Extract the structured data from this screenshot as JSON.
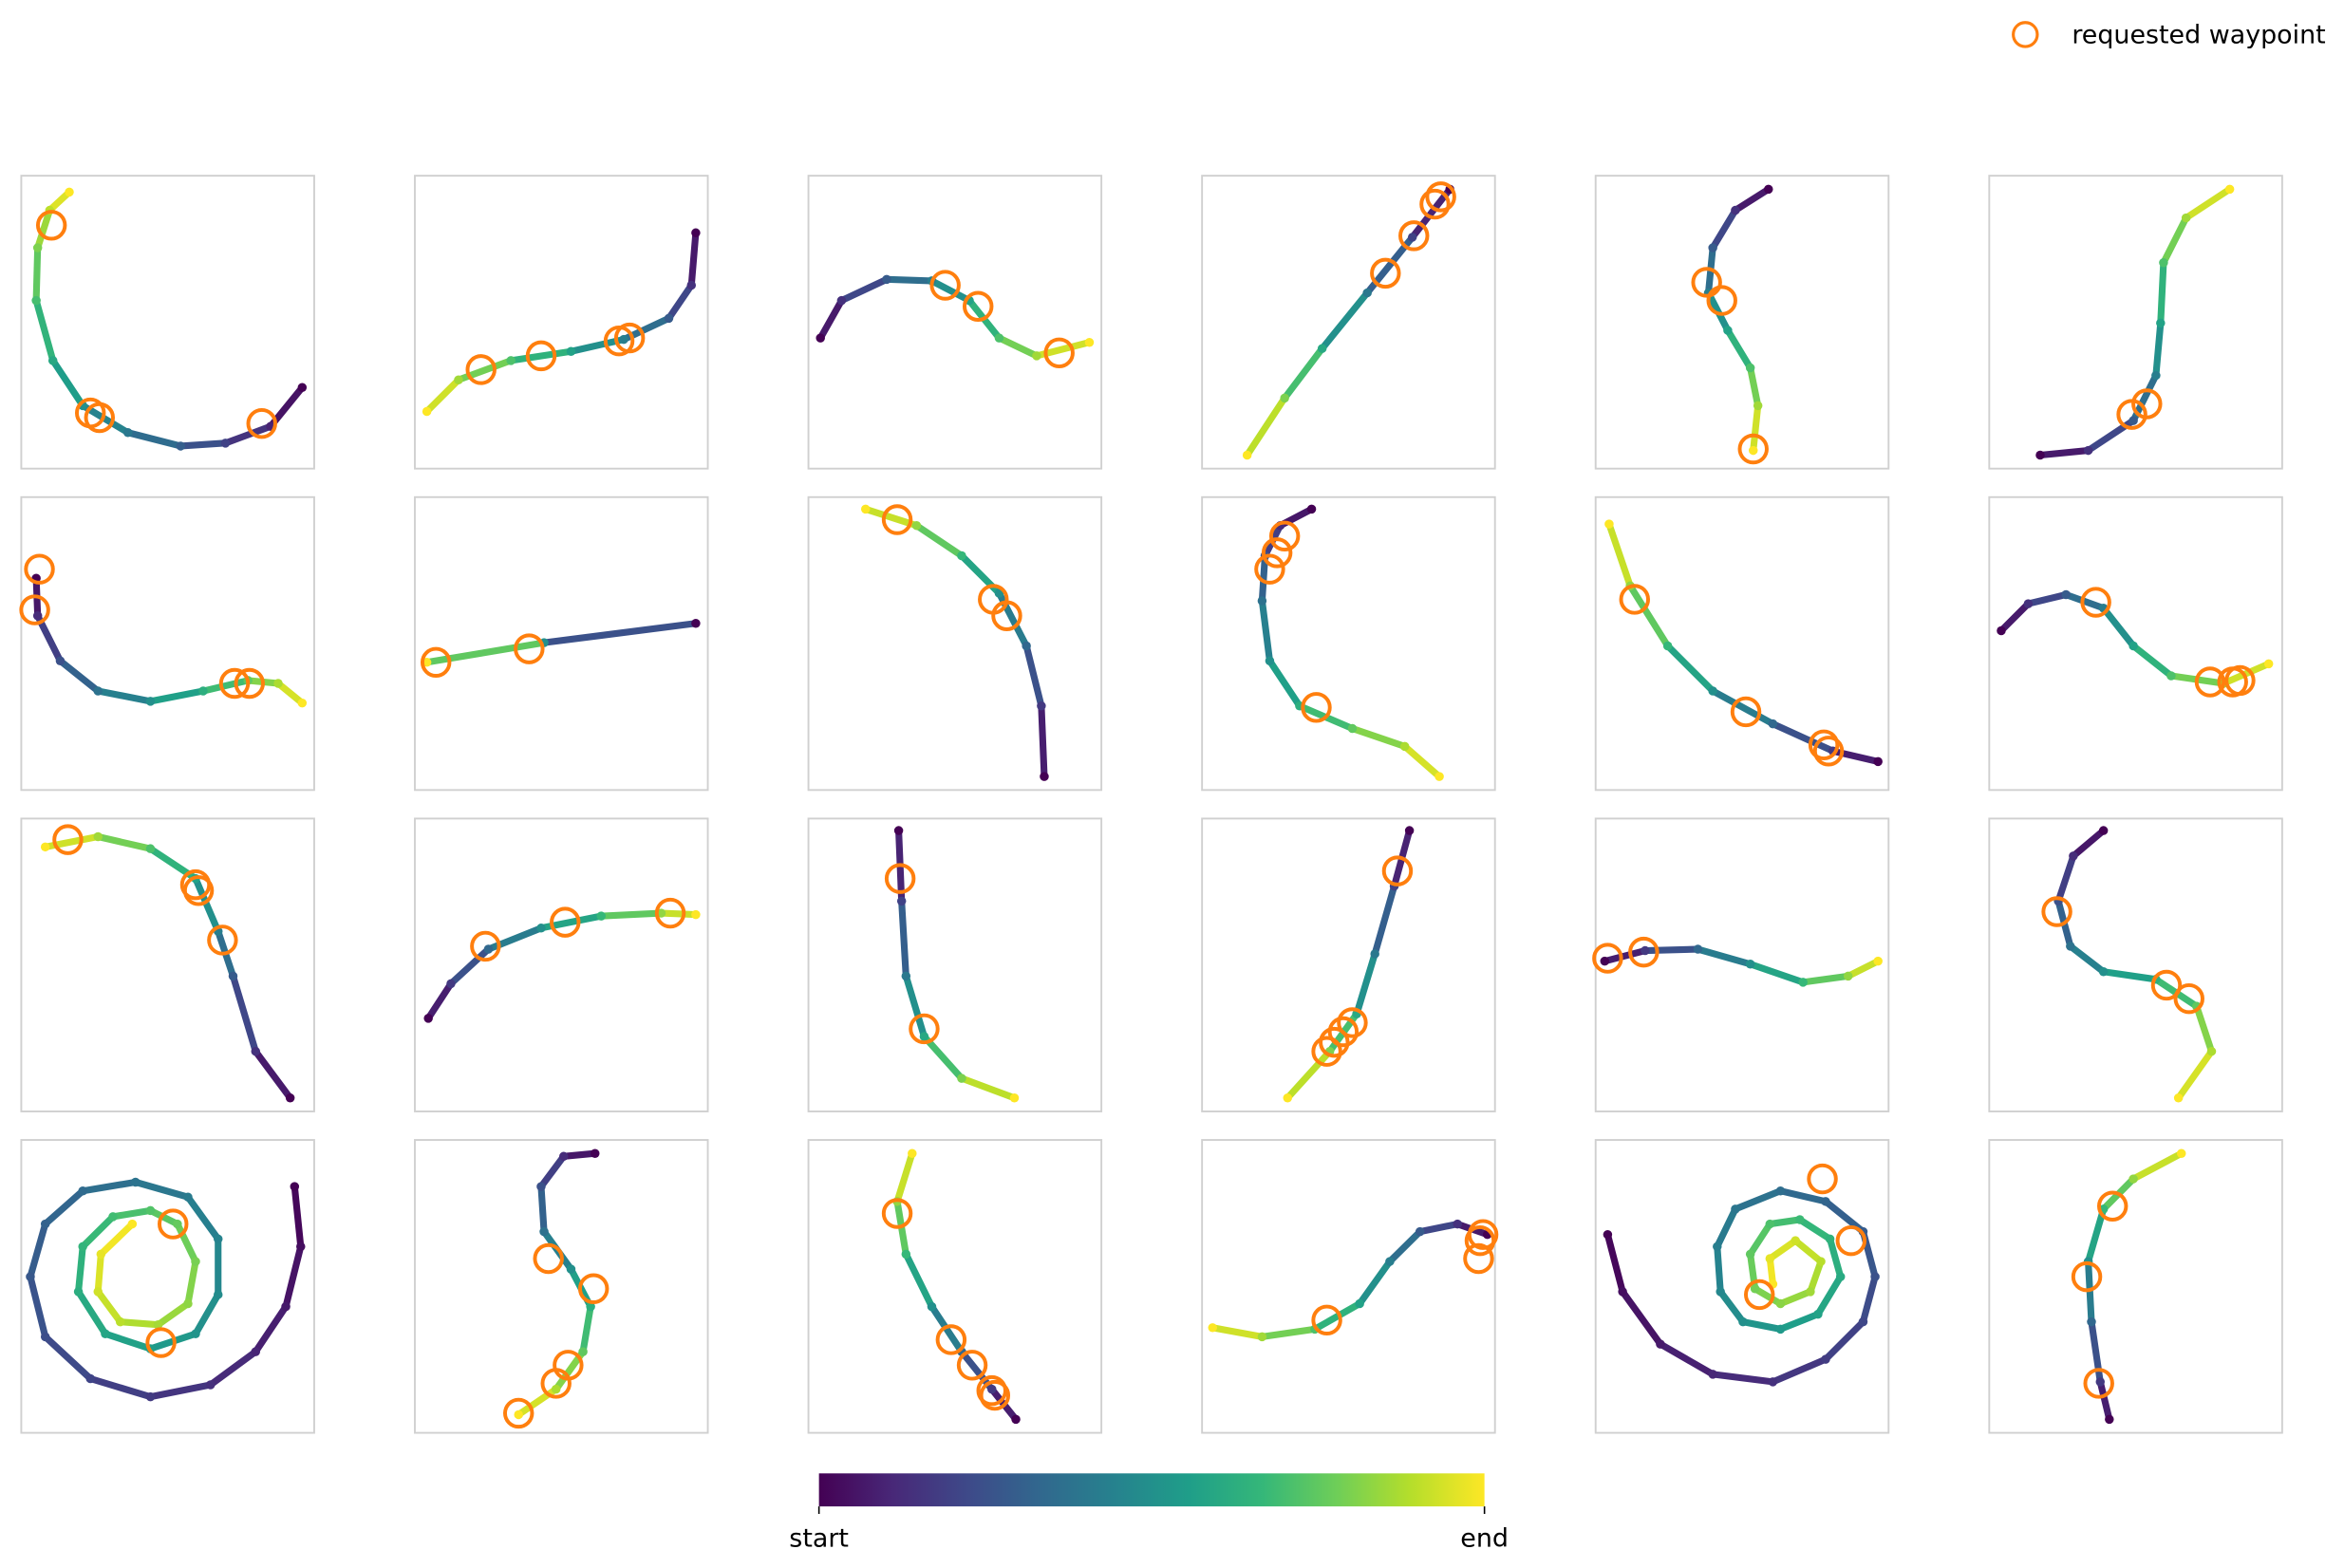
{
  "chart_data": {
    "type": "trajectory-grid",
    "xlim": [
      0,
      100
    ],
    "ylim": [
      0,
      100
    ],
    "colormap": "viridis",
    "legend": {
      "label": "requested waypoint",
      "color": "#ff7f0e",
      "position": "upper right"
    },
    "colorbar": {
      "start_label": "start",
      "end_label": "end"
    },
    "panels": [
      {
        "x": [
          95.9,
          85.1,
          69.7,
          54.4,
          36.4,
          21.0,
          10.8,
          5.1,
          5.6,
          9.7,
          16.4
        ],
        "y": [
          27.7,
          14.4,
          8.7,
          7.7,
          12.3,
          21.5,
          36.9,
          57.4,
          75.4,
          88.2,
          94.4
        ],
        "waypoints_x": [
          10.3,
          23.6,
          26.7,
          82.1
        ],
        "waypoints_y": [
          83.1,
          19.0,
          17.4,
          15.4
        ]
      },
      {
        "x": [
          95.9,
          94.4,
          86.7,
          71.3,
          53.3,
          32.8,
          14.9,
          4.1
        ],
        "y": [
          80.5,
          62.6,
          51.3,
          44.1,
          40.0,
          36.9,
          30.3,
          19.5
        ],
        "waypoints_x": [
          22.6,
          43.1,
          69.7,
          73.3
        ],
        "waypoints_y": [
          33.8,
          38.5,
          43.6,
          44.6
        ]
      },
      {
        "x": [
          4.1,
          11.3,
          26.7,
          42.1,
          54.9,
          65.1,
          77.9,
          95.9
        ],
        "y": [
          44.6,
          57.4,
          64.6,
          64.1,
          57.4,
          44.6,
          38.5,
          43.1
        ],
        "waypoints_x": [
          46.7,
          57.9,
          85.6
        ],
        "waypoints_y": [
          62.6,
          55.4,
          39.5
        ]
      },
      {
        "x": [
          84.6,
          71.8,
          56.4,
          41.0,
          28.2,
          15.4
        ],
        "y": [
          95.4,
          79.0,
          60.0,
          41.0,
          24.1,
          4.6
        ],
        "waypoints_x": [
          62.6,
          72.3,
          79.5,
          81.5
        ],
        "waypoints_y": [
          66.7,
          79.5,
          90.3,
          92.8
        ]
      },
      {
        "x": [
          59.0,
          47.7,
          40.0,
          38.5,
          45.1,
          52.8,
          55.4,
          53.8
        ],
        "y": [
          95.4,
          88.2,
          75.4,
          60.0,
          47.2,
          34.4,
          21.5,
          6.2
        ],
        "waypoints_x": [
          37.9,
          43.1,
          53.8
        ],
        "waypoints_y": [
          63.6,
          57.4,
          6.7
        ]
      },
      {
        "x": [
          17.4,
          33.8,
          49.2,
          56.9,
          58.5,
          59.5,
          67.2,
          82.1
        ],
        "y": [
          4.6,
          6.2,
          16.4,
          31.8,
          49.7,
          70.3,
          85.6,
          95.4
        ],
        "waypoints_x": [
          48.7,
          53.8
        ],
        "waypoints_y": [
          18.5,
          22.1
        ]
      },
      {
        "x": [
          5.1,
          5.6,
          13.3,
          26.2,
          44.1,
          62.1,
          77.4,
          87.7,
          95.9
        ],
        "y": [
          72.3,
          59.5,
          44.1,
          33.8,
          30.3,
          33.8,
          37.4,
          36.4,
          29.7
        ],
        "waypoints_x": [
          6.2,
          4.6,
          72.8,
          77.9
        ],
        "waypoints_y": [
          75.4,
          61.5,
          36.4,
          36.4
        ]
      },
      {
        "x": [
          95.9,
          44.1,
          4.1
        ],
        "y": [
          56.9,
          50.3,
          43.6
        ],
        "waypoints_x": [
          7.2,
          39.0
        ],
        "waypoints_y": [
          43.6,
          48.2
        ]
      },
      {
        "x": [
          80.5,
          79.5,
          74.4,
          65.1,
          52.3,
          36.9,
          19.5
        ],
        "y": [
          4.6,
          28.7,
          49.2,
          67.2,
          80.0,
          90.3,
          95.9
        ],
        "waypoints_x": [
          30.3,
          63.1,
          67.7
        ],
        "waypoints_y": [
          92.3,
          65.1,
          59.5
        ]
      },
      {
        "x": [
          37.4,
          26.7,
          21.5,
          20.5,
          23.1,
          33.3,
          51.3,
          69.2,
          81.0
        ],
        "y": [
          95.9,
          90.3,
          80.0,
          64.6,
          44.1,
          28.7,
          21.0,
          14.9,
          4.6
        ],
        "waypoints_x": [
          28.2,
          25.6,
          23.1,
          39.0
        ],
        "waypoints_y": [
          86.7,
          81.0,
          75.4,
          28.2
        ]
      },
      {
        "x": [
          96.4,
          81.0,
          60.5,
          40.0,
          24.6,
          11.8,
          4.6
        ],
        "y": [
          9.7,
          13.3,
          22.6,
          33.8,
          49.2,
          69.7,
          90.8
        ],
        "waypoints_x": [
          13.3,
          51.3,
          77.9,
          79.5
        ],
        "waypoints_y": [
          65.1,
          26.7,
          15.4,
          13.3
        ]
      },
      {
        "x": [
          4.1,
          13.3,
          26.2,
          39.0,
          49.2,
          62.1,
          80.0,
          95.4
        ],
        "y": [
          54.4,
          63.6,
          66.7,
          62.1,
          49.2,
          39.0,
          36.4,
          43.1
        ],
        "waypoints_x": [
          36.4,
          75.4,
          83.1,
          85.6
        ],
        "waypoints_y": [
          64.1,
          36.9,
          36.9,
          37.4
        ]
      },
      {
        "x": [
          91.8,
          80.0,
          72.3,
          67.2,
          59.5,
          44.1,
          26.2,
          8.2
        ],
        "y": [
          4.6,
          20.5,
          46.2,
          61.5,
          79.5,
          89.7,
          93.8,
          90.3
        ],
        "waypoints_x": [
          15.9,
          59.5,
          60.5,
          68.7
        ],
        "waypoints_y": [
          92.8,
          77.4,
          75.4,
          58.5
        ]
      },
      {
        "x": [
          4.6,
          12.3,
          25.1,
          43.1,
          63.6,
          84.1,
          95.9
        ],
        "y": [
          31.8,
          43.6,
          55.4,
          62.6,
          66.7,
          67.7,
          67.2
        ],
        "waypoints_x": [
          24.1,
          51.3,
          87.2
        ],
        "waypoints_y": [
          56.4,
          64.6,
          67.7
        ]
      },
      {
        "x": [
          30.8,
          31.8,
          33.3,
          39.5,
          52.3,
          70.3
        ],
        "y": [
          95.9,
          71.8,
          46.2,
          25.6,
          11.3,
          4.6
        ],
        "waypoints_x": [
          31.3,
          39.5
        ],
        "waypoints_y": [
          79.5,
          28.2
        ]
      },
      {
        "x": [
          70.8,
          65.6,
          59.0,
          52.8,
          43.6,
          29.2
        ],
        "y": [
          95.9,
          76.9,
          53.8,
          33.3,
          20.5,
          4.6
        ],
        "waypoints_x": [
          66.7,
          51.3,
          48.2,
          45.1,
          42.6
        ],
        "waypoints_y": [
          82.1,
          30.3,
          27.2,
          23.6,
          20.5
        ]
      },
      {
        "x": [
          3.1,
          16.9,
          34.9,
          52.8,
          70.8,
          86.2,
          96.4
        ],
        "y": [
          51.3,
          54.9,
          55.4,
          50.3,
          44.1,
          46.2,
          51.3
        ],
        "waypoints_x": [
          4.1,
          16.4
        ],
        "waypoints_y": [
          52.3,
          54.4
        ]
      },
      {
        "x": [
          39.0,
          28.7,
          23.6,
          27.7,
          39.0,
          56.9,
          70.8,
          75.9,
          64.6
        ],
        "y": [
          95.9,
          87.2,
          71.8,
          56.4,
          47.7,
          45.1,
          35.9,
          20.5,
          4.6
        ],
        "waypoints_x": [
          23.1,
          60.5,
          68.2
        ],
        "waypoints_y": [
          68.2,
          43.1,
          38.5
        ]
      },
      {
        "x": [
          93.3,
          95.4,
          90.3,
          80.0,
          64.6,
          44.1,
          23.6,
          8.2,
          3.1,
          8.2,
          21.0,
          39.0,
          56.9,
          67.2,
          67.2,
          59.5,
          44.1,
          28.7,
          19.5,
          21.0,
          31.3,
          44.1,
          53.3,
          59.5,
          56.9,
          46.7,
          33.8,
          26.2,
          27.2,
          37.9
        ],
        "y": [
          84.1,
          63.6,
          43.1,
          27.7,
          16.4,
          12.3,
          18.5,
          32.8,
          53.3,
          71.3,
          82.6,
          85.6,
          80.5,
          66.2,
          47.2,
          33.8,
          28.7,
          33.8,
          48.2,
          63.6,
          73.8,
          75.9,
          71.3,
          58.5,
          44.1,
          36.9,
          37.9,
          48.2,
          61.0,
          71.3
        ],
        "waypoints_x": [
          51.8,
          47.7
        ],
        "waypoints_y": [
          71.3,
          30.8
        ]
      },
      {
        "x": [
          61.5,
          50.8,
          43.1,
          44.1,
          53.3,
          60.0,
          57.4,
          48.2,
          35.4
        ],
        "y": [
          95.4,
          94.4,
          84.1,
          68.7,
          55.9,
          43.1,
          27.7,
          14.9,
          6.2
        ],
        "waypoints_x": [
          45.6,
          61.0,
          52.3,
          48.2,
          35.4
        ],
        "waypoints_y": [
          59.5,
          49.2,
          23.1,
          16.9,
          6.7
        ]
      },
      {
        "x": [
          70.8,
          62.6,
          52.3,
          42.1,
          33.3,
          30.3,
          35.4
        ],
        "y": [
          4.6,
          14.9,
          27.7,
          43.1,
          61.0,
          79.0,
          95.4
        ],
        "waypoints_x": [
          30.3,
          48.7,
          55.9,
          62.6,
          63.6
        ],
        "waypoints_y": [
          74.9,
          31.8,
          23.1,
          14.4,
          12.8
        ]
      },
      {
        "x": [
          97.4,
          87.2,
          74.4,
          64.1,
          53.8,
          38.5,
          20.5,
          3.6
        ],
        "y": [
          67.7,
          71.3,
          68.7,
          58.5,
          44.1,
          35.4,
          32.8,
          35.9
        ],
        "waypoints_x": [
          95.9,
          94.9,
          94.4,
          42.6
        ],
        "waypoints_y": [
          67.7,
          65.6,
          59.5,
          38.5
        ]
      },
      {
        "x": [
          4.1,
          9.2,
          22.1,
          40.0,
          60.5,
          78.5,
          91.3,
          95.4,
          91.3,
          78.5,
          63.1,
          47.7,
          41.5,
          42.6,
          50.3,
          63.1,
          75.9,
          83.6,
          80.0,
          69.7,
          59.5,
          52.8,
          54.4,
          63.1,
          73.3,
          76.9,
          68.2,
          59.5,
          60.5
        ],
        "y": [
          67.7,
          48.2,
          30.3,
          20.0,
          17.4,
          25.1,
          37.9,
          53.3,
          68.7,
          79.0,
          82.6,
          76.4,
          63.6,
          48.2,
          37.9,
          35.4,
          40.5,
          53.3,
          66.2,
          72.8,
          71.3,
          61.0,
          49.2,
          44.1,
          48.2,
          58.5,
          65.6,
          59.5,
          50.8
        ],
        "waypoints_x": [
          77.4,
          87.2,
          55.9
        ],
        "waypoints_y": [
          86.7,
          65.6,
          47.2
        ]
      },
      {
        "x": [
          41.0,
          37.9,
          34.9,
          33.8,
          39.0,
          49.2,
          65.6
        ],
        "y": [
          4.6,
          17.4,
          37.9,
          58.5,
          76.4,
          86.7,
          95.4
        ],
        "waypoints_x": [
          42.1,
          33.3,
          37.4
        ],
        "waypoints_y": [
          77.4,
          53.3,
          16.9
        ]
      }
    ]
  }
}
